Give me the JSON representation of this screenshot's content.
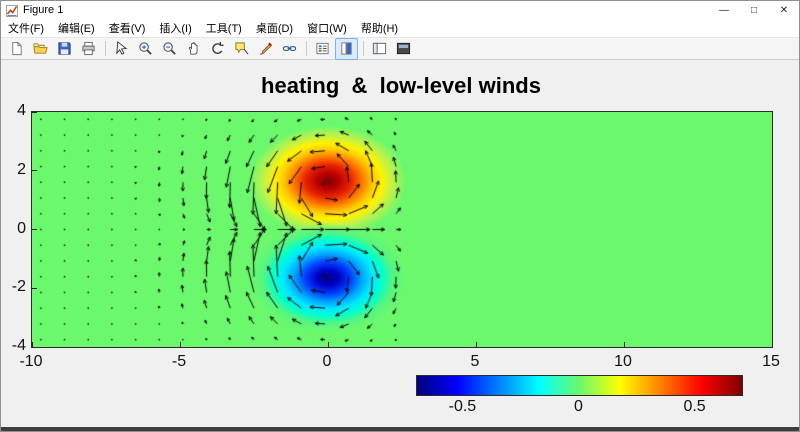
{
  "window": {
    "title": "Figure 1",
    "minimize_label": "—",
    "maximize_label": "□",
    "close_label": "✕"
  },
  "menu_bar": {
    "items": [
      "文件(F)",
      "编辑(E)",
      "查看(V)",
      "插入(I)",
      "工具(T)",
      "桌面(D)",
      "窗口(W)",
      "帮助(H)"
    ]
  },
  "toolbar": {
    "icons": [
      "new-file",
      "open",
      "save",
      "print",
      "edit-plot",
      "zoom-in",
      "zoom-out",
      "pan",
      "rotate-3d",
      "data-cursor",
      "brush",
      "link-plot",
      "insert-legend",
      "insert-colorbar",
      "hide-plot-tools",
      "dock-figure"
    ],
    "separators_after": [
      3,
      11,
      13
    ],
    "active_icon": "insert-colorbar"
  },
  "chart_data": {
    "type": "heatmap",
    "title": "heating  &  low-level winds",
    "xlim": [
      -10,
      15
    ],
    "ylim": [
      -4,
      4
    ],
    "x_ticks": [
      -10,
      -5,
      0,
      5,
      10,
      15
    ],
    "y_ticks": [
      -4,
      -2,
      0,
      2,
      4
    ],
    "background_value": 0,
    "background_color": "#6cf86c",
    "colormap": "jet",
    "heat_blobs": [
      {
        "cx": 0,
        "cy": 1.65,
        "rx": 2.4,
        "ry": 1.7,
        "sign": "positive",
        "peak": 0.7
      },
      {
        "cx": 0,
        "cy": -1.65,
        "rx": 2.4,
        "ry": 1.7,
        "sign": "negative",
        "peak": -0.7
      }
    ],
    "colorbar": {
      "orientation": "horizontal",
      "limits": [
        -0.7,
        0.7
      ],
      "ticks": [
        -0.5,
        0,
        0.5
      ]
    },
    "quiver": {
      "x_min": -9.7,
      "x_max": 2.3,
      "nx": 16,
      "y_min": -3.75,
      "y_max": 3.75,
      "ny": 15,
      "vortices": [
        {
          "x": 0,
          "y": 1.5,
          "omega": 1
        },
        {
          "x": 0,
          "y": -1.5,
          "omega": -1
        }
      ],
      "sigma_x_east": 1.8,
      "sigma_x_west": 3.0,
      "sigma_y": 1.4,
      "arrow_scale": 26,
      "arrow_color": "#000000"
    }
  }
}
